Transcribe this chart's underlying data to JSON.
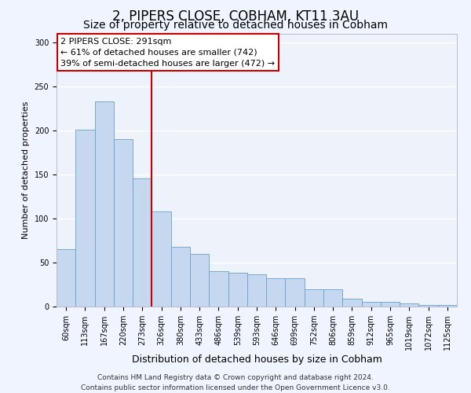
{
  "title": "2, PIPERS CLOSE, COBHAM, KT11 3AU",
  "subtitle": "Size of property relative to detached houses in Cobham",
  "xlabel": "Distribution of detached houses by size in Cobham",
  "ylabel": "Number of detached properties",
  "categories": [
    "60sqm",
    "113sqm",
    "167sqm",
    "220sqm",
    "273sqm",
    "326sqm",
    "380sqm",
    "433sqm",
    "486sqm",
    "539sqm",
    "593sqm",
    "646sqm",
    "699sqm",
    "752sqm",
    "806sqm",
    "859sqm",
    "912sqm",
    "965sqm",
    "1019sqm",
    "1072sqm",
    "1125sqm"
  ],
  "values": [
    65,
    201,
    233,
    190,
    145,
    108,
    68,
    60,
    40,
    38,
    37,
    32,
    32,
    20,
    20,
    9,
    5,
    5,
    4,
    2,
    2
  ],
  "bar_color": "#c5d8f0",
  "bar_edgecolor": "#6aa0cc",
  "background_color": "#eef2fb",
  "grid_color": "#ffffff",
  "annotation_text": "2 PIPERS CLOSE: 291sqm\n← 61% of detached houses are smaller (742)\n39% of semi-detached houses are larger (472) →",
  "annotation_box_edgecolor": "#cc0000",
  "vline_color": "#cc0000",
  "footer_line1": "Contains HM Land Registry data © Crown copyright and database right 2024.",
  "footer_line2": "Contains public sector information licensed under the Open Government Licence v3.0.",
  "ylim": [
    0,
    310
  ],
  "title_fontsize": 12,
  "subtitle_fontsize": 10,
  "xlabel_fontsize": 9,
  "ylabel_fontsize": 8,
  "tick_fontsize": 7,
  "footer_fontsize": 6.5,
  "annotation_fontsize": 8
}
